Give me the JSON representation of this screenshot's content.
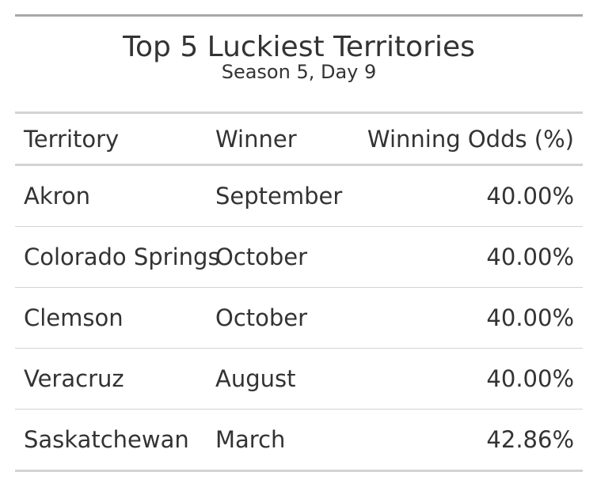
{
  "title": "Top 5 Luckiest Territories",
  "subtitle": "Season 5, Day 9",
  "columns": [
    "Territory",
    "Winner",
    "Winning Odds (%)"
  ],
  "rows": [
    {
      "territory": "Akron",
      "winner": "September",
      "odds": "40.00%"
    },
    {
      "territory": "Colorado Springs",
      "winner": "October",
      "odds": "40.00%"
    },
    {
      "territory": "Clemson",
      "winner": "October",
      "odds": "40.00%"
    },
    {
      "territory": "Veracruz",
      "winner": "August",
      "odds": "40.00%"
    },
    {
      "territory": "Saskatchewan",
      "winner": "March",
      "odds": "42.86%"
    }
  ]
}
